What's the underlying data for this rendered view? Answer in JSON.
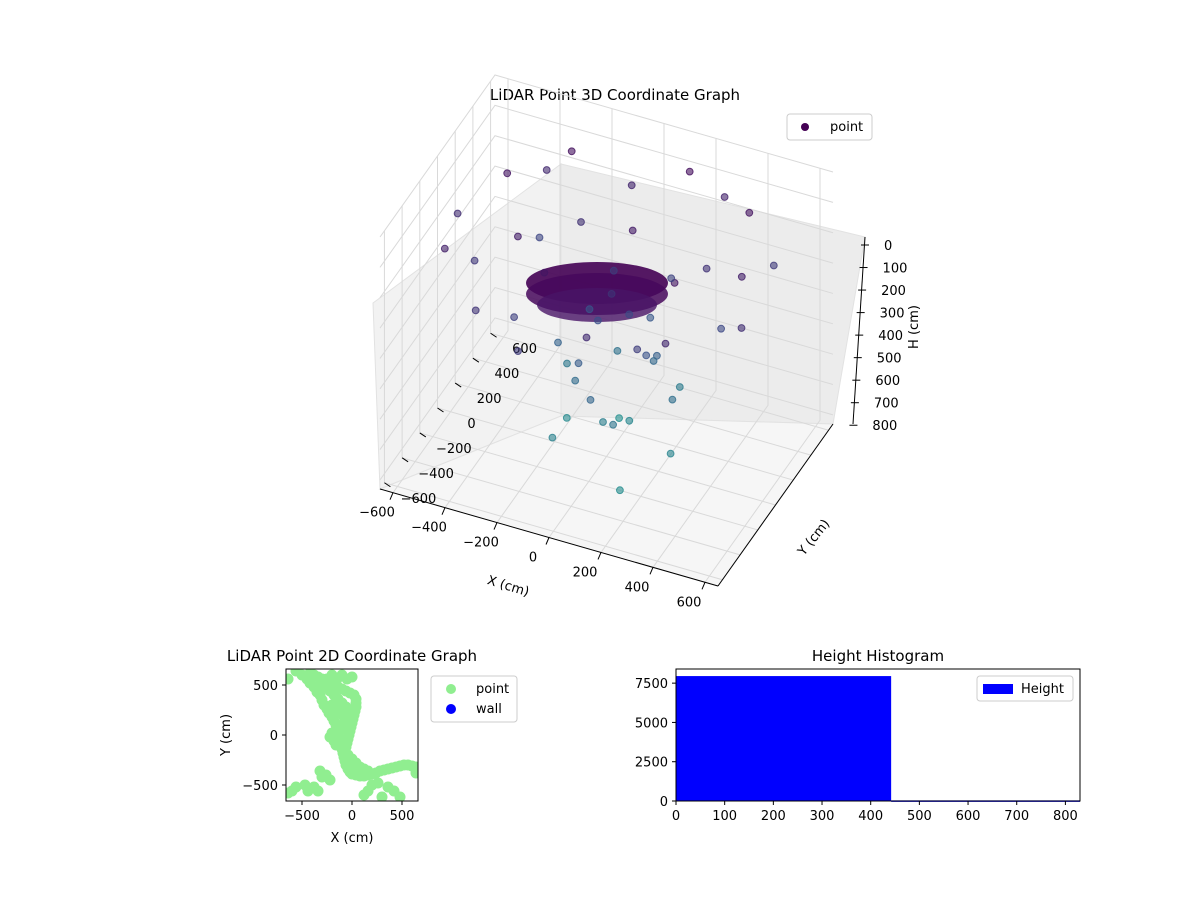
{
  "colors": {
    "point_2d": "#90ee90",
    "wall_2d": "#0000ff",
    "histogram_bar": "#0000ff",
    "point_3d_legend": "#440154",
    "colormap": [
      "#440154",
      "#3b528b",
      "#21908d"
    ]
  },
  "chart_data": [
    {
      "type": "scatter",
      "projection": "3d",
      "title": "LiDAR Point 3D Coordinate Graph",
      "xlabel": "X (cm)",
      "ylabel": "Y (cm)",
      "zlabel": "H (cm)",
      "x_ticks": [
        "−600",
        "−400",
        "−200",
        "0",
        "200",
        "400",
        "600"
      ],
      "y_ticks": [
        "−600",
        "−400",
        "−200",
        "0",
        "200",
        "400",
        "600"
      ],
      "z_ticks": [
        "0",
        "100",
        "200",
        "300",
        "400",
        "500",
        "600",
        "700",
        "800"
      ],
      "xlim": [
        -650,
        650
      ],
      "ylim": [
        -650,
        650
      ],
      "zlim": [
        0,
        830
      ],
      "z_inverted": true,
      "grid": true,
      "legend": {
        "location": "top-right",
        "entries": [
          "point"
        ]
      },
      "colormap": "viridis",
      "series": [
        {
          "name": "point",
          "points": [
            [
              150,
              500,
              60
            ],
            [
              -280,
              430,
              70
            ],
            [
              420,
              380,
              80
            ],
            [
              -450,
              200,
              90
            ],
            [
              330,
              -200,
              95
            ],
            [
              -120,
              -350,
              110
            ],
            [
              60,
              120,
              120
            ],
            [
              -300,
              -120,
              130
            ],
            [
              500,
              60,
              140
            ],
            [
              -520,
              -300,
              150
            ],
            [
              250,
              600,
              160
            ],
            [
              -80,
              520,
              170
            ],
            [
              380,
              -450,
              180
            ],
            [
              -400,
              500,
              190
            ],
            [
              100,
              -520,
              200
            ],
            [
              -600,
              80,
              210
            ],
            [
              560,
              -120,
              220
            ],
            [
              -200,
              300,
              230
            ],
            [
              300,
              250,
              240
            ],
            [
              -350,
              -450,
              250
            ],
            [
              40,
              -60,
              260
            ],
            [
              -480,
              -80,
              270
            ],
            [
              480,
              480,
              280
            ],
            [
              -150,
              -560,
              290
            ],
            [
              220,
              -300,
              300
            ],
            [
              -40,
              200,
              310
            ],
            [
              -260,
              -280,
              320
            ],
            [
              140,
              320,
              340
            ],
            [
              -380,
              360,
              350
            ],
            [
              400,
              120,
              360
            ],
            [
              60,
              80,
              380
            ],
            [
              -40,
              20,
              400
            ],
            [
              180,
              -80,
              420
            ],
            [
              -120,
              160,
              440
            ],
            [
              80,
              260,
              460
            ],
            [
              -60,
              -140,
              480
            ],
            [
              160,
              100,
              500
            ],
            [
              -200,
              40,
              520
            ],
            [
              20,
              -240,
              540
            ],
            [
              120,
              180,
              560
            ],
            [
              -100,
              -60,
              580
            ],
            [
              240,
              40,
              600
            ],
            [
              -60,
              300,
              620
            ],
            [
              80,
              -160,
              640
            ],
            [
              -220,
              200,
              660
            ],
            [
              180,
              300,
              680
            ],
            [
              0,
              -40,
              700
            ],
            [
              -140,
              -200,
              720
            ],
            [
              260,
              -40,
              740
            ],
            [
              40,
              140,
              760
            ],
            [
              -180,
              80,
              780
            ],
            [
              140,
              -260,
              800
            ],
            [
              -40,
              260,
              820
            ]
          ]
        }
      ]
    },
    {
      "type": "scatter",
      "title": "LiDAR Point 2D Coordinate Graph",
      "xlabel": "X (cm)",
      "ylabel": "Y (cm)",
      "x_ticks": [
        "−500",
        "0",
        "500"
      ],
      "y_ticks": [
        "500",
        "0",
        "−500"
      ],
      "xlim": [
        -660,
        660
      ],
      "ylim": [
        -660,
        660
      ],
      "legend": {
        "location": "outside-right",
        "entries": [
          "point",
          "wall"
        ]
      },
      "series": [
        {
          "name": "point",
          "points": [
            [
              -640,
              560
            ],
            [
              -560,
              640
            ],
            [
              -500,
              600
            ],
            [
              -450,
              560
            ],
            [
              -420,
              520
            ],
            [
              -380,
              480
            ],
            [
              -350,
              430
            ],
            [
              -320,
              400
            ],
            [
              -300,
              350
            ],
            [
              -280,
              300
            ],
            [
              -250,
              260
            ],
            [
              -230,
              220
            ],
            [
              -200,
              180
            ],
            [
              -180,
              140
            ],
            [
              -160,
              100
            ],
            [
              -150,
              60
            ],
            [
              -140,
              20
            ],
            [
              -130,
              -20
            ],
            [
              -120,
              -60
            ],
            [
              -110,
              -100
            ],
            [
              -100,
              -140
            ],
            [
              -90,
              -180
            ],
            [
              -80,
              -220
            ],
            [
              -70,
              -260
            ],
            [
              -60,
              -300
            ],
            [
              -40,
              -340
            ],
            [
              -20,
              -370
            ],
            [
              0,
              -390
            ],
            [
              40,
              -400
            ],
            [
              80,
              -410
            ],
            [
              120,
              -410
            ],
            [
              160,
              -400
            ],
            [
              200,
              -390
            ],
            [
              240,
              -380
            ],
            [
              280,
              -360
            ],
            [
              320,
              -350
            ],
            [
              360,
              -340
            ],
            [
              400,
              -330
            ],
            [
              440,
              -320
            ],
            [
              480,
              -310
            ],
            [
              520,
              -300
            ],
            [
              560,
              -300
            ],
            [
              600,
              -310
            ],
            [
              640,
              -320
            ],
            [
              640,
              -380
            ],
            [
              -420,
              620
            ],
            [
              -380,
              600
            ],
            [
              -340,
              580
            ],
            [
              -300,
              560
            ],
            [
              -260,
              540
            ],
            [
              -220,
              520
            ],
            [
              -180,
              500
            ],
            [
              -140,
              480
            ],
            [
              -100,
              460
            ],
            [
              -60,
              440
            ],
            [
              -20,
              420
            ],
            [
              20,
              400
            ],
            [
              40,
              360
            ],
            [
              40,
              320
            ],
            [
              40,
              280
            ],
            [
              30,
              240
            ],
            [
              20,
              200
            ],
            [
              10,
              160
            ],
            [
              0,
              120
            ],
            [
              -10,
              80
            ],
            [
              -20,
              40
            ],
            [
              -30,
              0
            ],
            [
              -40,
              -40
            ],
            [
              -50,
              -80
            ],
            [
              -60,
              -120
            ],
            [
              -250,
              560
            ],
            [
              -200,
              600
            ],
            [
              -150,
              560
            ],
            [
              -100,
              600
            ],
            [
              -50,
              560
            ],
            [
              0,
              580
            ],
            [
              -300,
              520
            ],
            [
              -260,
              480
            ],
            [
              -220,
              440
            ],
            [
              -180,
              400
            ],
            [
              -140,
              360
            ],
            [
              -100,
              320
            ],
            [
              -60,
              280
            ],
            [
              -20,
              240
            ],
            [
              -200,
              300
            ],
            [
              -160,
              260
            ],
            [
              -120,
              220
            ],
            [
              -80,
              180
            ],
            [
              -40,
              140
            ],
            [
              -100,
              100
            ],
            [
              -60,
              60
            ],
            [
              -200,
              20
            ],
            [
              -220,
              -20
            ],
            [
              -180,
              -60
            ],
            [
              -160,
              -100
            ],
            [
              -40,
              -200
            ],
            [
              0,
              -240
            ],
            [
              40,
              -280
            ],
            [
              80,
              -320
            ],
            [
              120,
              -340
            ],
            [
              160,
              -360
            ],
            [
              -30,
              -250
            ],
            [
              -10,
              -300
            ],
            [
              10,
              -330
            ],
            [
              -220,
              -450
            ],
            [
              -320,
              -360
            ],
            [
              -380,
              -520
            ],
            [
              -470,
              -500
            ],
            [
              -600,
              -560
            ],
            [
              -640,
              -580
            ],
            [
              -440,
              -560
            ],
            [
              -340,
              -560
            ],
            [
              260,
              -480
            ],
            [
              200,
              -500
            ],
            [
              160,
              -560
            ],
            [
              120,
              -600
            ],
            [
              360,
              -520
            ],
            [
              420,
              -560
            ],
            [
              480,
              -620
            ],
            [
              300,
              -620
            ],
            [
              -300,
              -420
            ],
            [
              -260,
              -400
            ],
            [
              -560,
              -520
            ]
          ]
        },
        {
          "name": "wall",
          "points": []
        }
      ]
    },
    {
      "type": "bar",
      "title": "Height Histogram",
      "xlabel": "",
      "ylabel": "",
      "x_ticks": [
        "0",
        "100",
        "200",
        "300",
        "400",
        "500",
        "600",
        "700",
        "800"
      ],
      "y_ticks": [
        "0",
        "2500",
        "5000",
        "7500"
      ],
      "xlim": [
        0,
        830
      ],
      "ylim": [
        0,
        8400
      ],
      "legend": {
        "location": "top-right",
        "entries": [
          "Height"
        ]
      },
      "series": [
        {
          "name": "Height",
          "bins": [
            [
              0,
              442,
              7950
            ],
            [
              442,
              830,
              40
            ]
          ]
        }
      ]
    }
  ]
}
